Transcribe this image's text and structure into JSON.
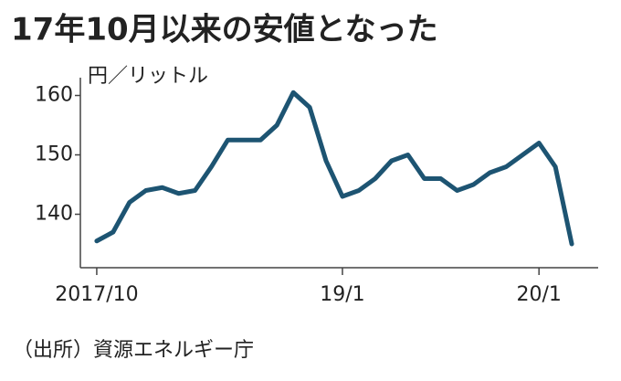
{
  "chart_data": {
    "type": "line",
    "title": "17年10月以来の安値となった",
    "y_label": "円／リットル",
    "source": "（出所）資源エネルギー庁",
    "x": [
      "2017-10",
      "2017-11",
      "2017-12",
      "2018-01",
      "2018-02",
      "2018-03",
      "2018-04",
      "2018-05",
      "2018-06",
      "2018-07",
      "2018-08",
      "2018-09",
      "2018-10",
      "2018-11",
      "2018-12",
      "2019-01",
      "2019-02",
      "2019-03",
      "2019-04",
      "2019-05",
      "2019-06",
      "2019-07",
      "2019-08",
      "2019-09",
      "2019-10",
      "2019-11",
      "2019-12",
      "2020-01",
      "2020-02",
      "2020-03"
    ],
    "series": [
      {
        "color": "#1d5472",
        "values": [
          135.5,
          137,
          142,
          144,
          144.5,
          143.5,
          144,
          148,
          152.5,
          152.5,
          152.5,
          155,
          160.5,
          158,
          149,
          143,
          144,
          146,
          149,
          150,
          146,
          146,
          144,
          145,
          147,
          148,
          150,
          152,
          148,
          135
        ]
      }
    ],
    "xlim": [
      "2017-09",
      "2020-04"
    ],
    "xticks": [
      {
        "value": "2017-10",
        "label": "2017/10"
      },
      {
        "value": "2019-01",
        "label": "19/1"
      },
      {
        "value": "2020-01",
        "label": "20/1"
      }
    ],
    "ylim": [
      131,
      163
    ],
    "yticks": [
      140,
      150,
      160
    ]
  }
}
